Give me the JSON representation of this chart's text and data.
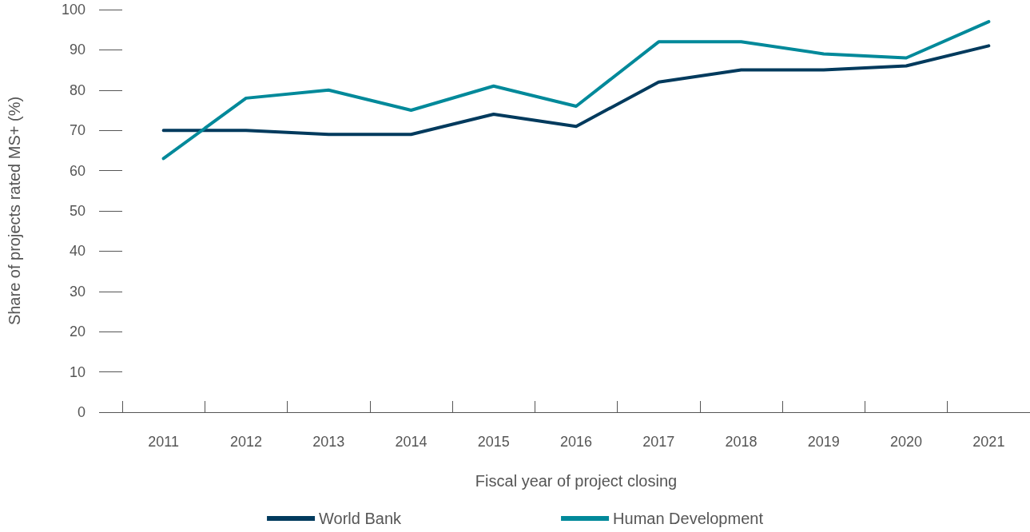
{
  "chart_data": {
    "type": "line",
    "xlabel": "Fiscal year of project closing",
    "ylabel": "Share of projects rated MS+ (%)",
    "categories": [
      "2011",
      "2012",
      "2013",
      "2014",
      "2015",
      "2016",
      "2017",
      "2018",
      "2019",
      "2020",
      "2021"
    ],
    "series": [
      {
        "name": "World Bank",
        "color": "#003a5d",
        "values": [
          70,
          70,
          69,
          69,
          74,
          71,
          82,
          85,
          85,
          86,
          91
        ]
      },
      {
        "name": "Human Development",
        "color": "#00899a",
        "values": [
          63,
          78,
          80,
          75,
          81,
          76,
          92,
          92,
          89,
          88,
          97
        ]
      }
    ],
    "ylim": [
      0,
      100
    ],
    "yticks": [
      0,
      10,
      20,
      30,
      40,
      50,
      60,
      70,
      80,
      90,
      100
    ],
    "grid": false,
    "legend": "bottom",
    "marker": "none",
    "line_style": "solid"
  }
}
